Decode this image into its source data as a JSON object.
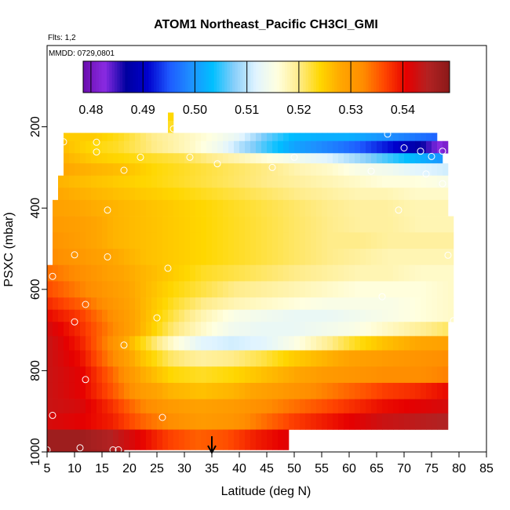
{
  "chart_data": {
    "type": "heatmap",
    "title": "ATOM1 Northeast_Pacific CH3Cl_GMI",
    "subtitle_flights": "Flts: 1,2",
    "subtitle_dates": "MMDD: 0729,0801",
    "xlabel": "Latitude (deg N)",
    "ylabel": "PSXC (mbar)",
    "xlim": [
      5,
      85
    ],
    "ylim": [
      1000,
      0
    ],
    "x_ticks": [
      "5",
      "10",
      "15",
      "20",
      "25",
      "30",
      "35",
      "40",
      "45",
      "50",
      "55",
      "60",
      "65",
      "70",
      "75",
      "80",
      "85"
    ],
    "y_ticks": [
      "200",
      "400",
      "600",
      "800",
      "1000"
    ],
    "grid": false,
    "colorbar": {
      "position": "top inside plot",
      "range": [
        0.4785,
        0.549
      ],
      "tick_labels": [
        "0.48",
        "0.49",
        "0.50",
        "0.51",
        "0.52",
        "0.53",
        "0.54"
      ],
      "colors": [
        "#6a0dad",
        "#8a2be2",
        "#0000a0",
        "#0000cd",
        "#1e5aff",
        "#1e90ff",
        "#00bfff",
        "#87cefa",
        "#e0f4ff",
        "#ffffe0",
        "#ffec8b",
        "#ffd700",
        "#ffa500",
        "#ff8c00",
        "#ff4500",
        "#e60000",
        "#b22222",
        "#8b1a1a"
      ]
    },
    "arrow_marker_x": 35,
    "levels_mbar": [
      175,
      200,
      225,
      250,
      275,
      300,
      325,
      350,
      375,
      400,
      425,
      450,
      475,
      500,
      525,
      550,
      575,
      600,
      625,
      650,
      675,
      700,
      725,
      750,
      775,
      800,
      825,
      850,
      875,
      900,
      925,
      950,
      975,
      1000
    ],
    "rows": [
      {
        "p": [
          165,
          185
        ],
        "x": [
          27,
          28
        ],
        "v": [
          0.524,
          0.524
        ]
      },
      {
        "p": [
          185,
          215
        ],
        "x": [
          27,
          28
        ],
        "v": [
          0.523,
          0.523
        ]
      },
      {
        "p": [
          215,
          235
        ],
        "x": [
          8,
          76
        ],
        "v": [
          0.525,
          0.525,
          0.523,
          0.52,
          0.518,
          0.516,
          0.513,
          0.507,
          0.503,
          0.502,
          0.502,
          0.5,
          0.498,
          0.496
        ]
      },
      {
        "p": [
          235,
          265
        ],
        "x": [
          8,
          78
        ],
        "v": [
          0.526,
          0.524,
          0.523,
          0.521,
          0.519,
          0.517,
          0.514,
          0.509,
          0.505,
          0.501,
          0.499,
          0.497,
          0.494,
          0.491,
          0.487,
          0.481
        ]
      },
      {
        "p": [
          265,
          290
        ],
        "x": [
          8,
          77
        ],
        "v": [
          0.527,
          0.525,
          0.524,
          0.523,
          0.522,
          0.52,
          0.518,
          0.516,
          0.514,
          0.512,
          0.509,
          0.506,
          0.503,
          0.5
        ]
      },
      {
        "p": [
          290,
          320
        ],
        "x": [
          8,
          78
        ],
        "v": [
          0.528,
          0.527,
          0.526,
          0.524,
          0.523,
          0.522,
          0.521,
          0.52,
          0.518,
          0.517,
          0.515,
          0.514,
          0.512,
          0.511
        ]
      },
      {
        "p": [
          320,
          350
        ],
        "x": [
          7,
          78
        ],
        "v": [
          0.527,
          0.526,
          0.525,
          0.524,
          0.523,
          0.522,
          0.521,
          0.52,
          0.519,
          0.518,
          0.517,
          0.516,
          0.516,
          0.515
        ]
      },
      {
        "p": [
          350,
          380
        ],
        "x": [
          7,
          78
        ],
        "v": [
          0.528,
          0.527,
          0.526,
          0.525,
          0.524,
          0.523,
          0.522,
          0.521,
          0.52,
          0.519,
          0.518,
          0.518,
          0.517,
          0.517
        ]
      },
      {
        "p": [
          380,
          420
        ],
        "x": [
          6,
          78
        ],
        "v": [
          0.529,
          0.528,
          0.527,
          0.526,
          0.525,
          0.524,
          0.523,
          0.522,
          0.521,
          0.52,
          0.519,
          0.519,
          0.518,
          0.518
        ]
      },
      {
        "p": [
          420,
          460
        ],
        "x": [
          6,
          79
        ],
        "v": [
          0.53,
          0.529,
          0.527,
          0.526,
          0.525,
          0.524,
          0.523,
          0.522,
          0.521,
          0.52,
          0.519,
          0.519,
          0.518,
          0.518
        ]
      },
      {
        "p": [
          460,
          500
        ],
        "x": [
          6,
          79
        ],
        "v": [
          0.531,
          0.529,
          0.527,
          0.526,
          0.525,
          0.524,
          0.523,
          0.522,
          0.521,
          0.52,
          0.52,
          0.519,
          0.519,
          0.519
        ]
      },
      {
        "p": [
          500,
          540
        ],
        "x": [
          6,
          79
        ],
        "v": [
          0.532,
          0.53,
          0.528,
          0.526,
          0.525,
          0.524,
          0.523,
          0.522,
          0.521,
          0.52,
          0.519,
          0.518,
          0.518,
          0.518
        ]
      },
      {
        "p": [
          540,
          580
        ],
        "x": [
          5,
          79
        ],
        "v": [
          0.534,
          0.532,
          0.529,
          0.527,
          0.525,
          0.523,
          0.522,
          0.521,
          0.52,
          0.519,
          0.518,
          0.518,
          0.517,
          0.517
        ]
      },
      {
        "p": [
          580,
          620
        ],
        "x": [
          5,
          79
        ],
        "v": [
          0.536,
          0.533,
          0.53,
          0.527,
          0.524,
          0.522,
          0.52,
          0.519,
          0.518,
          0.517,
          0.516,
          0.516,
          0.516,
          0.517
        ]
      },
      {
        "p": [
          620,
          650
        ],
        "x": [
          5,
          79
        ],
        "v": [
          0.538,
          0.535,
          0.531,
          0.527,
          0.523,
          0.52,
          0.518,
          0.517,
          0.516,
          0.515,
          0.515,
          0.515,
          0.516,
          0.517
        ]
      },
      {
        "p": [
          650,
          680
        ],
        "x": [
          5,
          79
        ],
        "v": [
          0.54,
          0.537,
          0.532,
          0.527,
          0.522,
          0.518,
          0.515,
          0.514,
          0.513,
          0.513,
          0.514,
          0.515,
          0.516,
          0.517
        ]
      },
      {
        "p": [
          680,
          715
        ],
        "x": [
          5,
          78
        ],
        "v": [
          0.542,
          0.538,
          0.533,
          0.527,
          0.521,
          0.517,
          0.514,
          0.513,
          0.513,
          0.514,
          0.515,
          0.517,
          0.519,
          0.521
        ]
      },
      {
        "p": [
          715,
          750
        ],
        "x": [
          5,
          78
        ],
        "v": [
          0.543,
          0.539,
          0.532,
          0.524,
          0.517,
          0.512,
          0.511,
          0.512,
          0.515,
          0.519,
          0.523,
          0.526,
          0.528,
          0.529
        ]
      },
      {
        "p": [
          750,
          790
        ],
        "x": [
          5,
          78
        ],
        "v": [
          0.543,
          0.54,
          0.533,
          0.526,
          0.521,
          0.519,
          0.52,
          0.522,
          0.525,
          0.527,
          0.529,
          0.53,
          0.531,
          0.532
        ]
      },
      {
        "p": [
          790,
          830
        ],
        "x": [
          5,
          78
        ],
        "v": [
          0.543,
          0.541,
          0.535,
          0.528,
          0.524,
          0.523,
          0.524,
          0.526,
          0.528,
          0.53,
          0.531,
          0.532,
          0.532,
          0.533
        ]
      },
      {
        "p": [
          830,
          870
        ],
        "x": [
          5,
          78
        ],
        "v": [
          0.543,
          0.541,
          0.536,
          0.53,
          0.527,
          0.526,
          0.527,
          0.529,
          0.531,
          0.533,
          0.535,
          0.537,
          0.538,
          0.54
        ]
      },
      {
        "p": [
          870,
          905
        ],
        "x": [
          5,
          78
        ],
        "v": [
          0.543,
          0.542,
          0.538,
          0.533,
          0.53,
          0.529,
          0.53,
          0.532,
          0.534,
          0.536,
          0.538,
          0.54,
          0.541,
          0.542
        ]
      },
      {
        "p": [
          905,
          945
        ],
        "x": [
          5,
          78
        ],
        "v": [
          0.542,
          0.541,
          0.539,
          0.535,
          0.532,
          0.53,
          0.531,
          0.534,
          0.537,
          0.539,
          0.541,
          0.543,
          0.544,
          0.545
        ]
      },
      {
        "p": [
          945,
          995
        ],
        "x": [
          5,
          49
        ],
        "v": [
          0.547,
          0.547,
          0.545,
          0.541,
          0.537,
          0.535,
          0.536,
          0.539,
          0.541
        ]
      },
      {
        "p": [
          995,
          1000
        ],
        "x": [
          5,
          19
        ],
        "v": [
          0.547,
          0.547,
          0.546
        ]
      }
    ],
    "points": [
      [
        8,
        237
      ],
      [
        14,
        238
      ],
      [
        14,
        262
      ],
      [
        22,
        275
      ],
      [
        28,
        205
      ],
      [
        31,
        275
      ],
      [
        19,
        307
      ],
      [
        16,
        405
      ],
      [
        36,
        291
      ],
      [
        46,
        300
      ],
      [
        50,
        275
      ],
      [
        64,
        309
      ],
      [
        67,
        218
      ],
      [
        70,
        252
      ],
      [
        73,
        260
      ],
      [
        75,
        273
      ],
      [
        77,
        260
      ],
      [
        74,
        316
      ],
      [
        77,
        340
      ],
      [
        10,
        515
      ],
      [
        16,
        520
      ],
      [
        27,
        548
      ],
      [
        69,
        405
      ],
      [
        78,
        516
      ],
      [
        6,
        568
      ],
      [
        12,
        637
      ],
      [
        10,
        680
      ],
      [
        25,
        670
      ],
      [
        19,
        737
      ],
      [
        66,
        618
      ],
      [
        79,
        677
      ],
      [
        12,
        822
      ],
      [
        6,
        910
      ],
      [
        26,
        915
      ],
      [
        79,
        845
      ],
      [
        79,
        900
      ],
      [
        5,
        995
      ],
      [
        11,
        990
      ],
      [
        17,
        995
      ],
      [
        18,
        995
      ]
    ]
  }
}
